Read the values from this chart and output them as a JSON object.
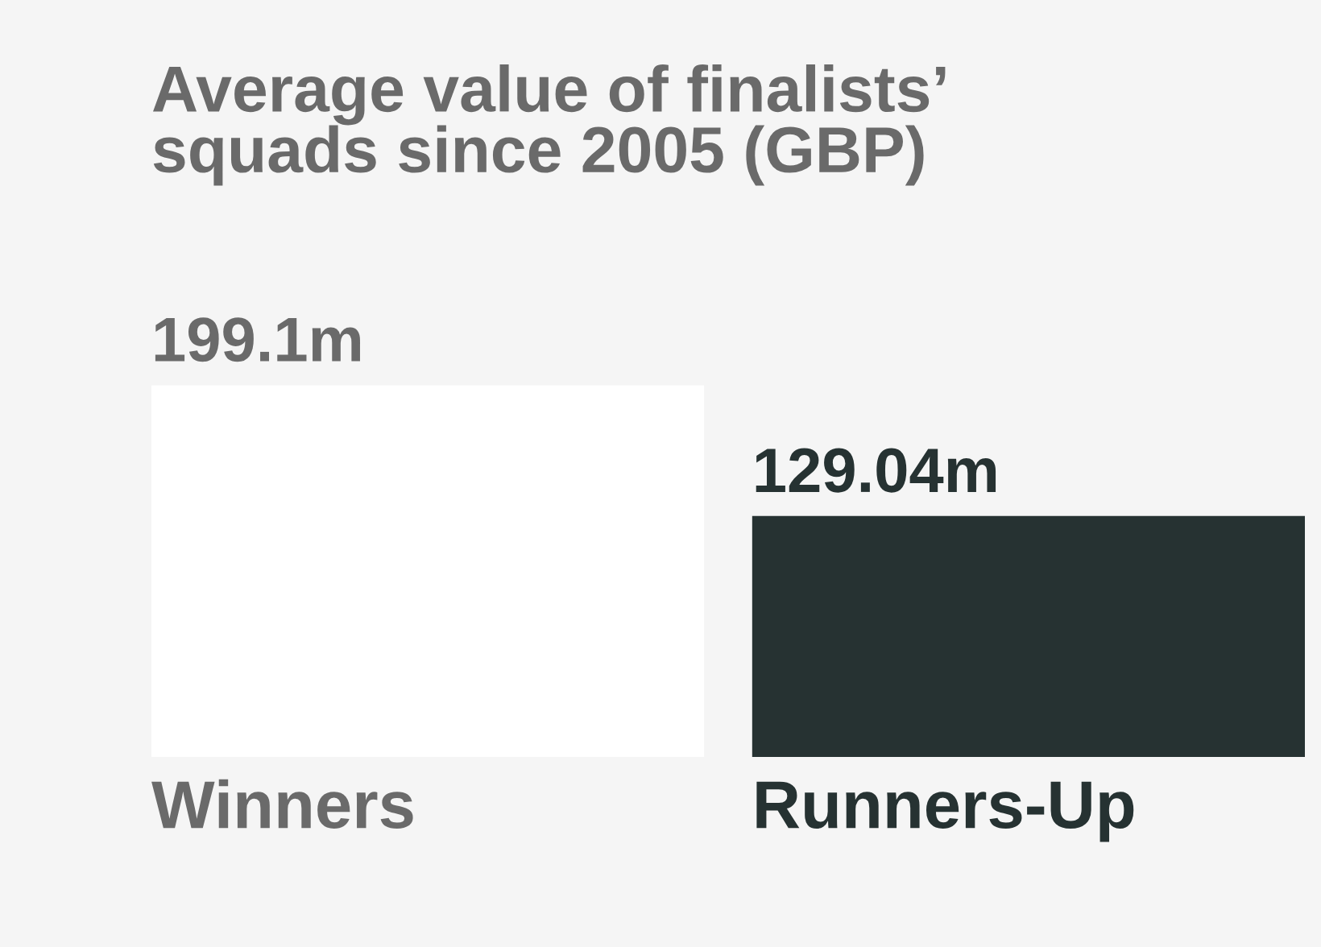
{
  "chart_data": {
    "type": "bar",
    "title": "Average value of finalists’\nsquads since 2005 (GBP)",
    "categories": [
      "Winners",
      "Runners-Up"
    ],
    "values": [
      199.1,
      129.04
    ],
    "colors": [
      "#ffffff",
      "#263232"
    ],
    "value_labels": [
      "199.1m",
      "129.04m"
    ]
  }
}
